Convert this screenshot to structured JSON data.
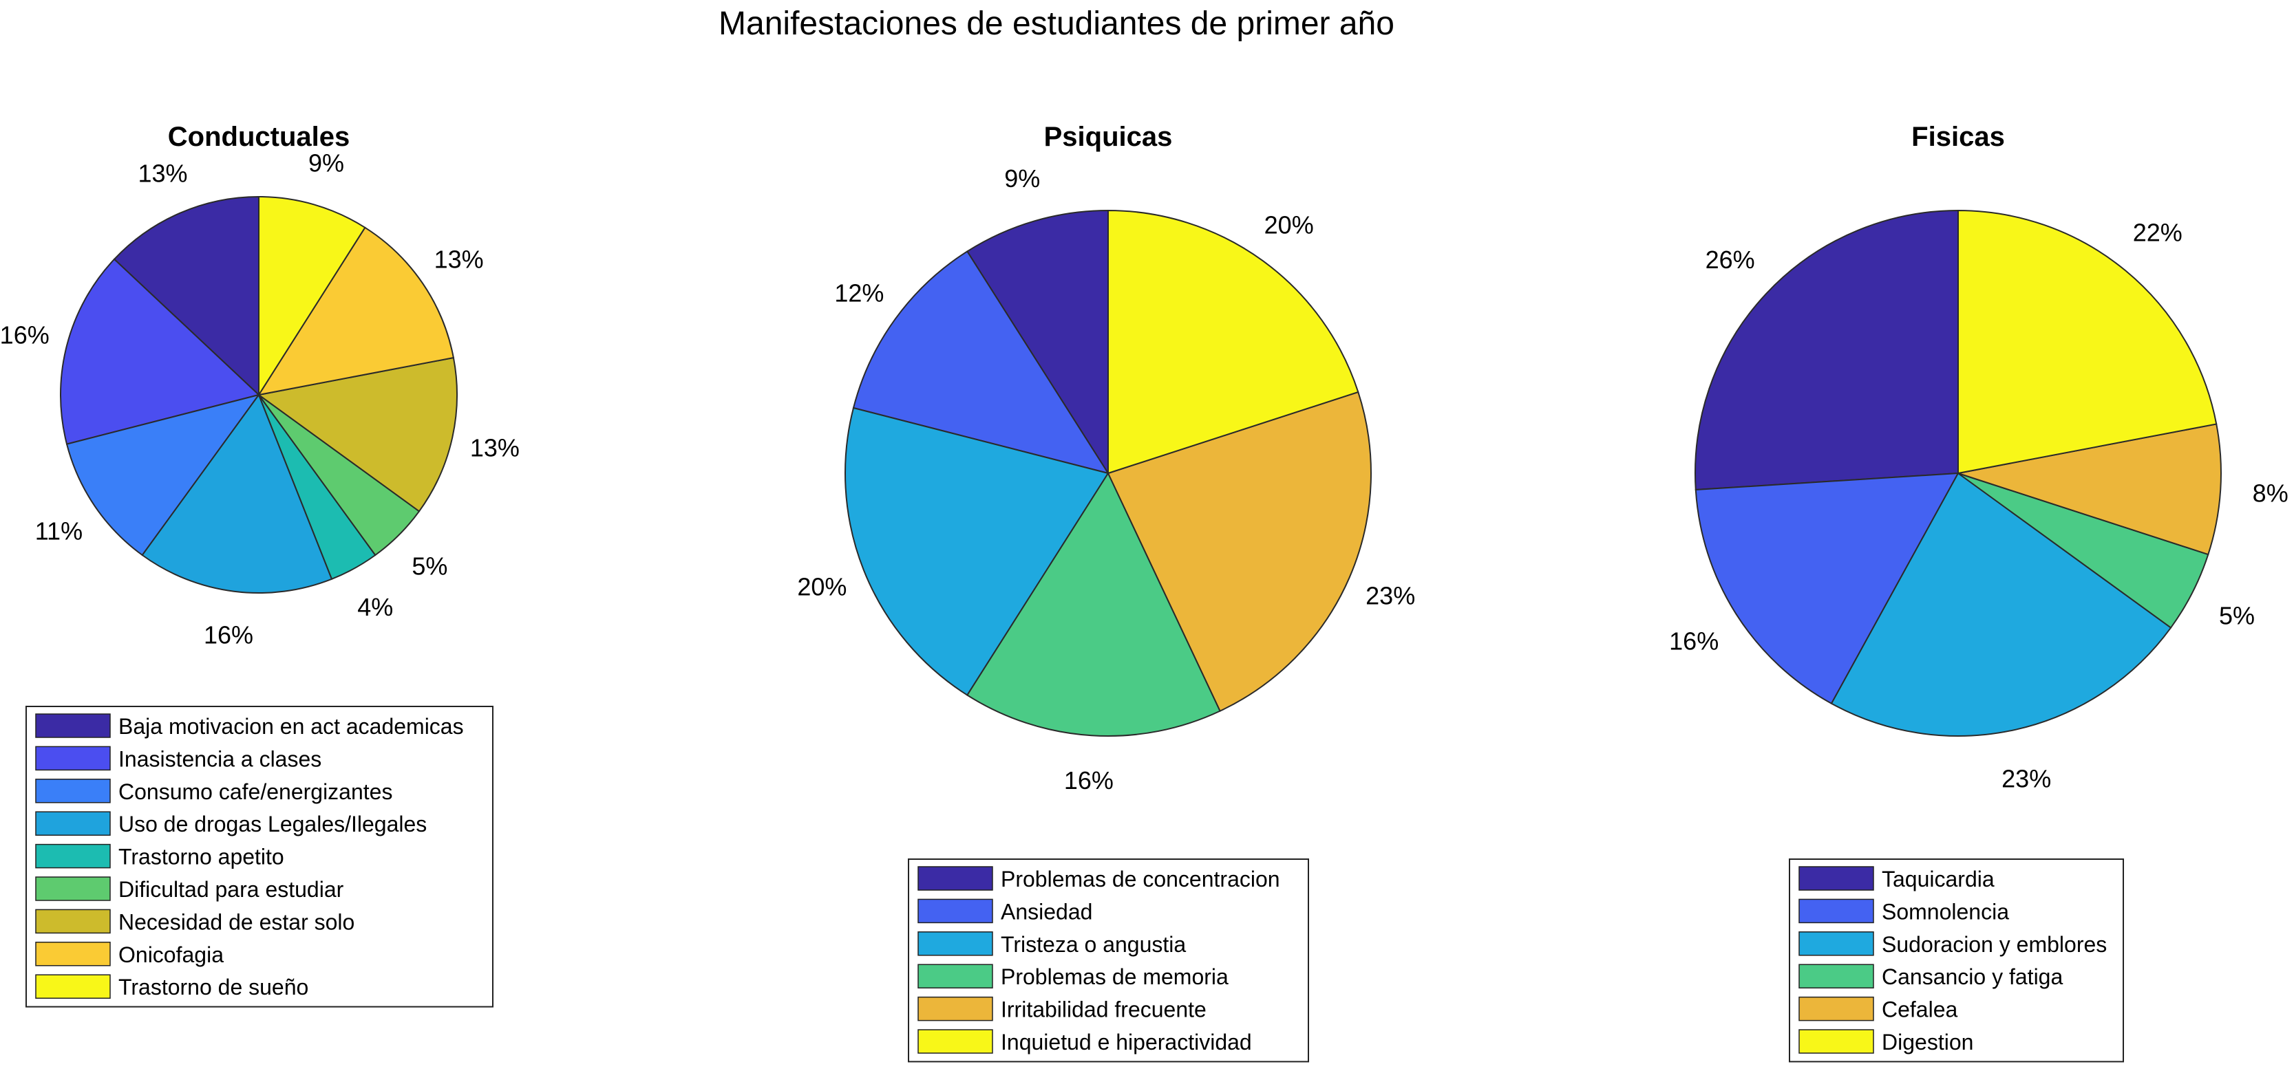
{
  "figure": {
    "title": "Manifestaciones de estudiantes de primer año"
  },
  "chart_data": [
    {
      "type": "pie",
      "title": "Conductuales",
      "slices": [
        {
          "label": "Baja motivacion en act academicas",
          "value": 13,
          "pct_label": "13%",
          "color": "#3b2ba5"
        },
        {
          "label": "Inasistencia a clases",
          "value": 16,
          "pct_label": "16%",
          "color": "#4b4ef0"
        },
        {
          "label": "Consumo cafe/energizantes",
          "value": 11,
          "pct_label": "11%",
          "color": "#3a7ff8"
        },
        {
          "label": "Uso de drogas Legales/Ilegales",
          "value": 16,
          "pct_label": "16%",
          "color": "#1fa3dd"
        },
        {
          "label": "Trastorno apetito",
          "value": 4,
          "pct_label": "4%",
          "color": "#1cbcb1"
        },
        {
          "label": "Dificultad para estudiar",
          "value": 5,
          "pct_label": "5%",
          "color": "#5ecb6f"
        },
        {
          "label": "Necesidad de estar solo",
          "value": 13,
          "pct_label": "13%",
          "color": "#cdbb2c"
        },
        {
          "label": "Onicofagia",
          "value": 13,
          "pct_label": "13%",
          "color": "#facb34"
        },
        {
          "label": "Trastorno de sueño",
          "value": 9,
          "pct_label": "9%",
          "color": "#f8f718"
        }
      ],
      "legend_placement": "below"
    },
    {
      "type": "pie",
      "title": "Psiquicas",
      "slices": [
        {
          "label": "Problemas de concentracion",
          "value": 9,
          "pct_label": "9%",
          "color": "#3b2ba5"
        },
        {
          "label": "Ansiedad",
          "value": 12,
          "pct_label": "12%",
          "color": "#4462f2"
        },
        {
          "label": "Tristeza o angustia",
          "value": 20,
          "pct_label": "20%",
          "color": "#1fa9df"
        },
        {
          "label": "Problemas de memoria",
          "value": 16,
          "pct_label": "16%",
          "color": "#4bcb86"
        },
        {
          "label": "Irritabilidad frecuente",
          "value": 23,
          "pct_label": "23%",
          "color": "#ecb63a"
        },
        {
          "label": "Inquietud e hiperactividad",
          "value": 20,
          "pct_label": "20%",
          "color": "#f8f718"
        }
      ],
      "legend_placement": "below"
    },
    {
      "type": "pie",
      "title": "Fisicas",
      "slices": [
        {
          "label": "Taquicardia",
          "value": 26,
          "pct_label": "26%",
          "color": "#3b2ba5"
        },
        {
          "label": "Somnolencia",
          "value": 16,
          "pct_label": "16%",
          "color": "#4462f2"
        },
        {
          "label": "Sudoracion y emblores",
          "value": 23,
          "pct_label": "23%",
          "color": "#1fa9df"
        },
        {
          "label": "Cansancio y fatiga",
          "value": 5,
          "pct_label": "5%",
          "color": "#4bcb86"
        },
        {
          "label": "Cefalea",
          "value": 8,
          "pct_label": "8%",
          "color": "#ecb63a"
        },
        {
          "label": "Digestion",
          "value": 22,
          "pct_label": "22%",
          "color": "#f8f718"
        }
      ],
      "legend_placement": "below"
    }
  ]
}
